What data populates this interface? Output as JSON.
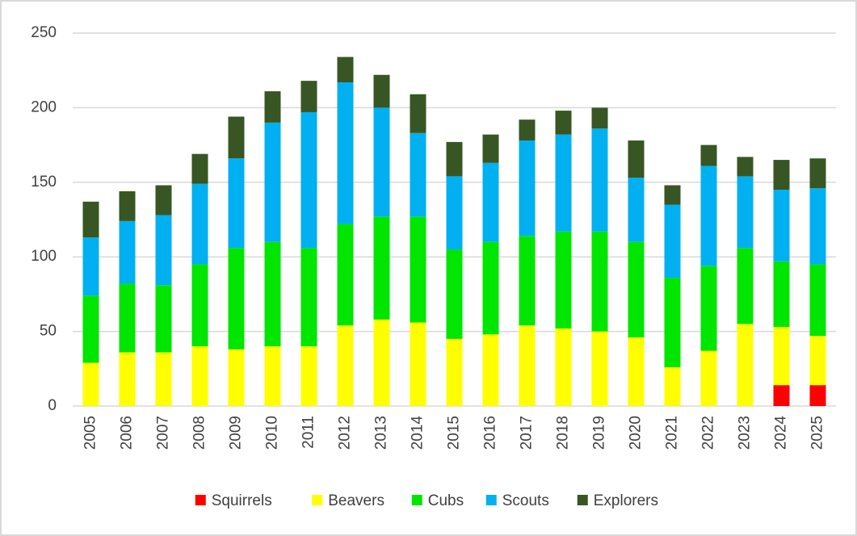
{
  "chart_data": {
    "type": "stacked_bar",
    "categories": [
      "2005",
      "2006",
      "2007",
      "2008",
      "2009",
      "2010",
      "2011",
      "2012",
      "2013",
      "2014",
      "2015",
      "2016",
      "2017",
      "2018",
      "2019",
      "2020",
      "2021",
      "2022",
      "2023",
      "2024",
      "2025"
    ],
    "series": [
      {
        "name": "Squirrels",
        "color": "#ff0000",
        "values": [
          0,
          0,
          0,
          0,
          0,
          0,
          0,
          0,
          0,
          0,
          0,
          0,
          0,
          0,
          0,
          0,
          0,
          0,
          0,
          14,
          14
        ]
      },
      {
        "name": "Beavers",
        "color": "#ffff00",
        "values": [
          29,
          36,
          36,
          40,
          38,
          40,
          40,
          54,
          58,
          56,
          45,
          48,
          54,
          52,
          50,
          46,
          26,
          37,
          55,
          39,
          33
        ]
      },
      {
        "name": "Cubs",
        "color": "#00e600",
        "values": [
          45,
          46,
          45,
          55,
          68,
          70,
          66,
          68,
          69,
          71,
          60,
          62,
          60,
          65,
          67,
          64,
          60,
          57,
          51,
          44,
          48
        ]
      },
      {
        "name": "Scouts",
        "color": "#00b0f0",
        "values": [
          39,
          42,
          47,
          54,
          60,
          80,
          91,
          95,
          73,
          56,
          49,
          53,
          64,
          65,
          69,
          43,
          49,
          67,
          48,
          48,
          51
        ]
      },
      {
        "name": "Explorers",
        "color": "#375623",
        "values": [
          24,
          20,
          20,
          20,
          28,
          21,
          21,
          17,
          22,
          26,
          23,
          19,
          14,
          16,
          14,
          25,
          13,
          14,
          13,
          20,
          20
        ]
      }
    ],
    "ylim": [
      0,
      250
    ],
    "yticks": [
      0,
      50,
      100,
      150,
      200,
      250
    ],
    "grid": true,
    "legend": "bottom"
  }
}
